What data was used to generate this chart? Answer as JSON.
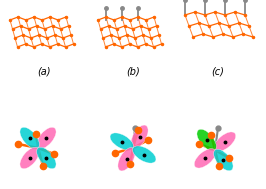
{
  "background_color": "#ffffff",
  "label_a": "(a)",
  "label_b": "(b)",
  "label_c": "(c)",
  "label_fontsize": 7,
  "orange_color": "#FF6600",
  "gray_color": "#888888",
  "pink_color": "#FF69B4",
  "teal_color": "#00CED1",
  "green_color": "#00CC00",
  "dark_color": "#111111",
  "fig_width": 2.66,
  "fig_height": 1.89
}
